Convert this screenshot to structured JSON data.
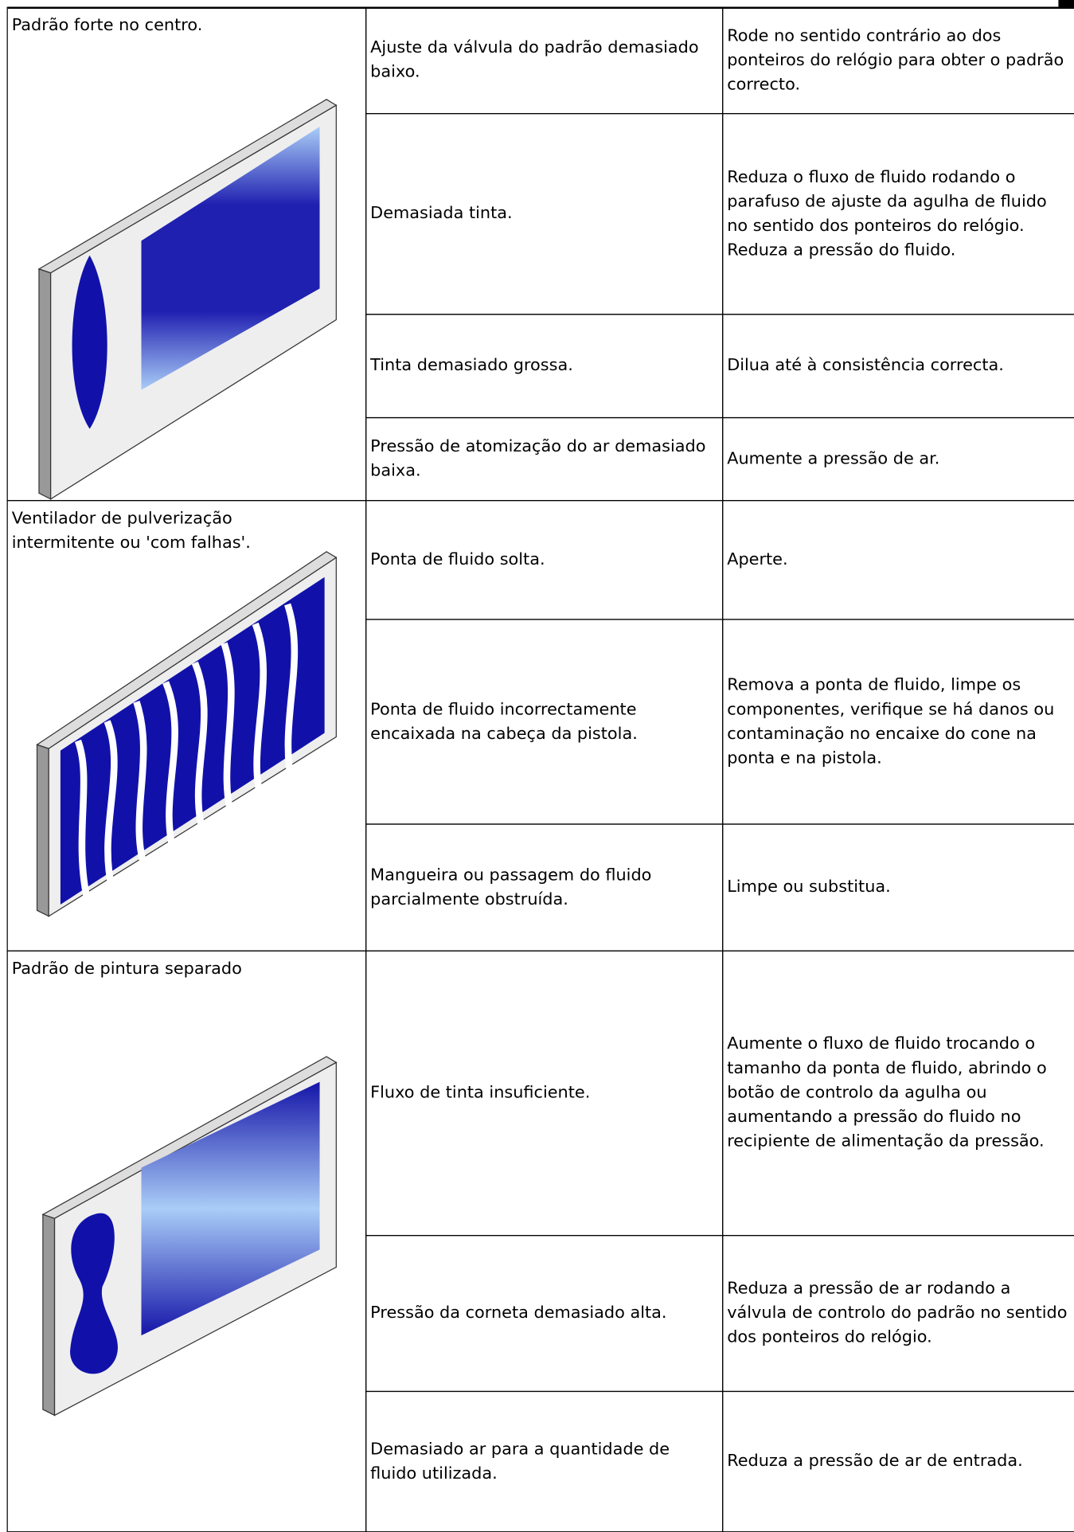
{
  "table": {
    "groups": [
      {
        "problem": "Padrão forte no centro.",
        "rows": [
          [
            "Ajuste da válvula do padrão demasiado baixo.",
            "Rode no sentido contrário ao dos ponteiros do relógio para obter o padrão correcto."
          ],
          [
            "Demasiada tinta.",
            "Reduza o fluxo de fluido rodando o parafuso de ajuste da agulha de fluido no sentido dos ponteiros do relógio. Reduza a pressão do fluido."
          ],
          [
            "Tinta demasiado grossa.",
            "Dilua até à consistência correcta."
          ],
          [
            "Pressão de atomização do ar demasiado baixa.",
            "Aumente a pressão de ar."
          ]
        ]
      },
      {
        "problem": "Ventilador de pulverização intermitente ou 'com falhas'.",
        "rows": [
          [
            "Ponta de fluido solta.",
            "Aperte."
          ],
          [
            "Ponta de fluido incorrectamente encaixada na cabeça da pistola.",
            "Remova a ponta de fluido, limpe os componentes, verifique se há danos ou contaminação no encaixe do cone na ponta e na pistola."
          ],
          [
            "Mangueira ou passagem do fluido parcialmente obstruída.",
            "Limpe ou substitua."
          ]
        ]
      },
      {
        "problem": "Padrão de pintura separado",
        "rows": [
          [
            "Fluxo de tinta insuficiente.",
            "Aumente o fluxo de fluido trocando o tamanho da ponta de fluido, abrindo o botão de controlo da agulha ou aumentando a pressão do fluido no recipiente de alimentação da pressão."
          ],
          [
            "Pressão da corneta demasiado alta.",
            "Reduza a pressão de ar rodando a válvula de controlo do padrão no sentido dos ponteiros do relógio."
          ],
          [
            "Demasiado ar para a quantidade de fluido utilizada.",
            "Reduza a pressão de ar de entrada."
          ]
        ]
      }
    ]
  }
}
